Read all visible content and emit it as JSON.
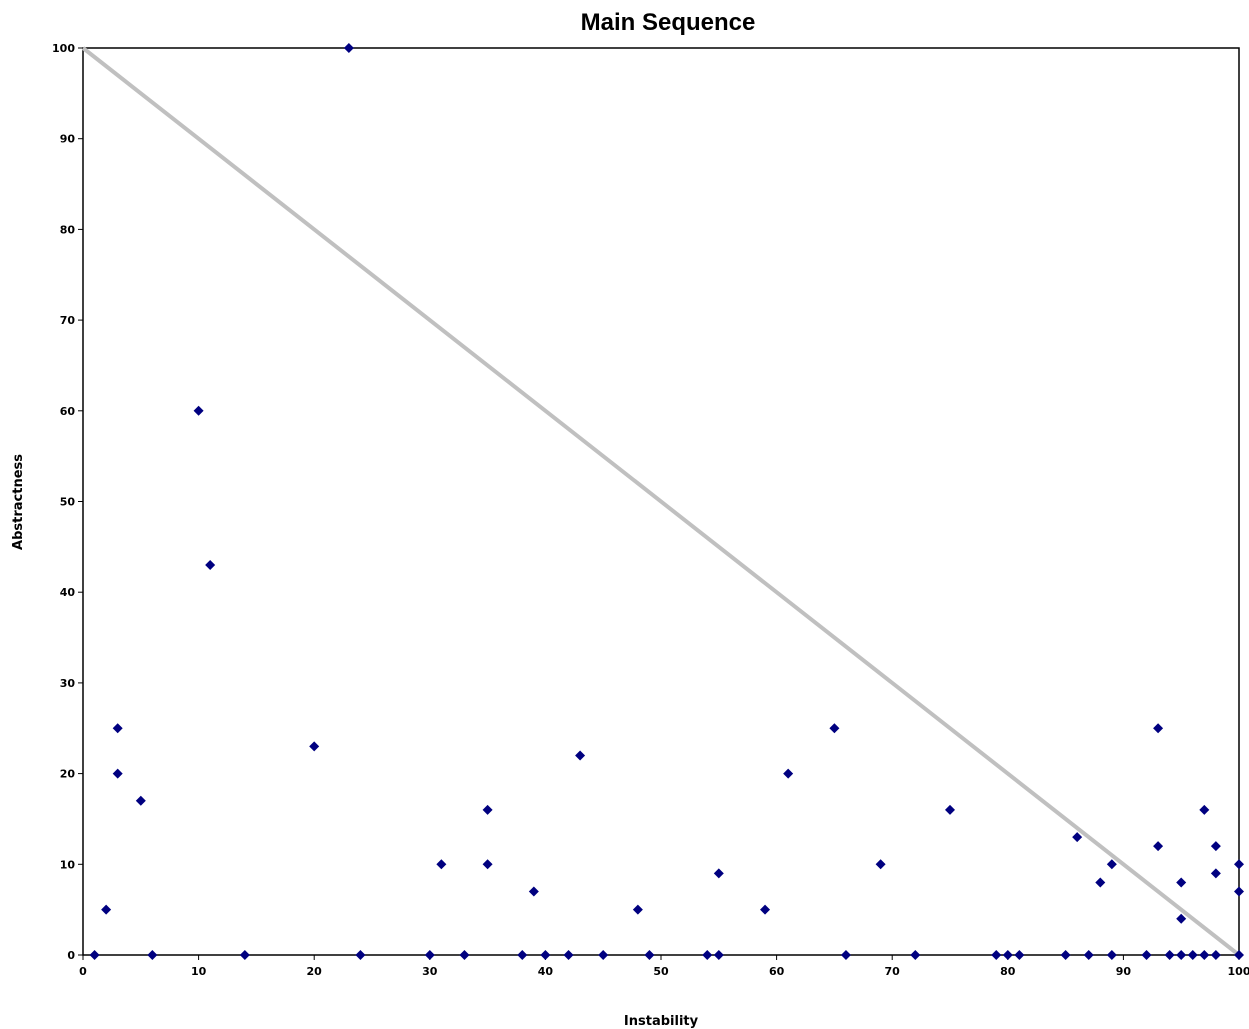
{
  "chart_data": {
    "type": "scatter",
    "title": "Main Sequence",
    "xlabel": "Instability",
    "ylabel": "Abstractness",
    "xlim": [
      0,
      100
    ],
    "ylim": [
      0,
      100
    ],
    "xticks": [
      0,
      10,
      20,
      30,
      40,
      50,
      60,
      70,
      80,
      90,
      100
    ],
    "yticks": [
      0,
      10,
      20,
      30,
      40,
      50,
      60,
      70,
      80,
      90,
      100
    ],
    "grid": false,
    "legend": "none",
    "reference_line": {
      "from": [
        0,
        100
      ],
      "to": [
        100,
        0
      ],
      "color": "#c0c0c0"
    },
    "marker_color": "#000080",
    "marker": "diamond",
    "points": [
      [
        1,
        0
      ],
      [
        2,
        5
      ],
      [
        3,
        25
      ],
      [
        3,
        20
      ],
      [
        5,
        17
      ],
      [
        6,
        0
      ],
      [
        10,
        60
      ],
      [
        11,
        43
      ],
      [
        14,
        0
      ],
      [
        20,
        23
      ],
      [
        23,
        100
      ],
      [
        24,
        0
      ],
      [
        30,
        0
      ],
      [
        31,
        10
      ],
      [
        33,
        0
      ],
      [
        35,
        16
      ],
      [
        35,
        10
      ],
      [
        38,
        0
      ],
      [
        39,
        7
      ],
      [
        40,
        0
      ],
      [
        42,
        0
      ],
      [
        43,
        22
      ],
      [
        45,
        0
      ],
      [
        48,
        5
      ],
      [
        49,
        0
      ],
      [
        54,
        0
      ],
      [
        55,
        9
      ],
      [
        55,
        0
      ],
      [
        59,
        5
      ],
      [
        61,
        20
      ],
      [
        65,
        25
      ],
      [
        66,
        0
      ],
      [
        69,
        10
      ],
      [
        72,
        0
      ],
      [
        75,
        16
      ],
      [
        79,
        0
      ],
      [
        80,
        0
      ],
      [
        81,
        0
      ],
      [
        85,
        0
      ],
      [
        86,
        13
      ],
      [
        87,
        0
      ],
      [
        88,
        8
      ],
      [
        89,
        10
      ],
      [
        89,
        0
      ],
      [
        92,
        0
      ],
      [
        93,
        25
      ],
      [
        93,
        12
      ],
      [
        94,
        0
      ],
      [
        95,
        8
      ],
      [
        95,
        4
      ],
      [
        95,
        0
      ],
      [
        96,
        0
      ],
      [
        97,
        16
      ],
      [
        97,
        0
      ],
      [
        98,
        12
      ],
      [
        98,
        9
      ],
      [
        98,
        0
      ],
      [
        100,
        10
      ],
      [
        100,
        7
      ],
      [
        100,
        0
      ]
    ]
  }
}
